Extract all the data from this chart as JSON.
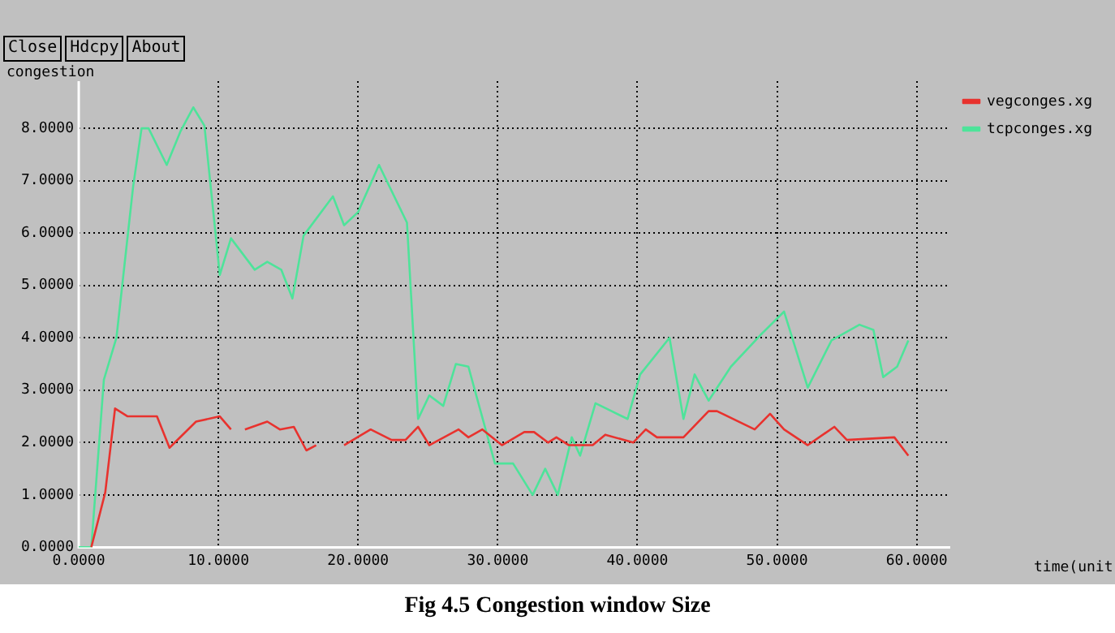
{
  "chart_data": {
    "type": "line",
    "ylabel": "congestion",
    "annotations": [
      "Close",
      "Hdcpy",
      "About",
      "time(unit",
      "Fig 4.5 Congestion window Size"
    ],
    "series": [
      {
        "name": "vegconges.xg",
        "color": "#e8322e",
        "x": [
          0.9,
          1.9,
          2.6,
          3.5,
          5.6,
          6.5,
          8.4,
          10.1,
          10.9,
          11.4,
          11.9,
          13.5,
          14.4,
          15.4,
          16.3,
          17.0,
          18.0,
          19.0,
          20.9,
          22.4,
          23.4,
          24.3,
          25.1,
          27.2,
          27.9,
          28.9,
          30.3,
          31.9,
          32.6,
          33.6,
          34.2,
          35.1,
          36.8,
          37.7,
          39.7,
          40.6,
          41.4,
          43.3,
          45.1,
          45.7,
          48.4,
          49.5,
          50.5,
          52.2,
          54.1,
          55.0,
          58.4,
          59.4
        ],
        "values": [
          0,
          1.05,
          2.65,
          2.5,
          2.5,
          1.9,
          2.4,
          2.5,
          2.25,
          null,
          2.25,
          2.4,
          2.25,
          2.3,
          1.85,
          1.95,
          null,
          1.95,
          2.25,
          2.05,
          2.05,
          2.3,
          1.95,
          2.25,
          2.1,
          2.25,
          1.95,
          2.2,
          2.2,
          2.0,
          2.1,
          1.95,
          1.95,
          2.15,
          2.0,
          2.25,
          2.1,
          2.1,
          2.6,
          2.6,
          2.25,
          2.55,
          2.25,
          1.95,
          2.3,
          2.05,
          2.1,
          1.75
        ]
      },
      {
        "name": "tcpconges.xg",
        "color": "#4ee39a",
        "x": [
          0,
          0.9,
          1.8,
          2.7,
          3.9,
          4.5,
          5.0,
          6.3,
          7.3,
          8.2,
          9.0,
          10.1,
          10.9,
          12.6,
          13.5,
          14.5,
          15.3,
          16.1,
          18.2,
          19.0,
          20.0,
          21.5,
          23.5,
          24.3,
          25.1,
          26.1,
          27.0,
          27.9,
          29.8,
          31.1,
          32.5,
          33.4,
          34.3,
          35.3,
          35.9,
          37.0,
          39.3,
          40.2,
          42.3,
          43.3,
          44.1,
          45.1,
          46.7,
          48.8,
          50.5,
          52.2,
          53.9,
          55.9,
          56.9,
          57.6,
          58.6,
          59.4
        ],
        "values": [
          0,
          0,
          3.2,
          4.0,
          6.9,
          8.0,
          8.0,
          7.3,
          7.95,
          8.4,
          8.05,
          5.2,
          5.9,
          5.3,
          5.45,
          5.3,
          4.75,
          5.95,
          6.7,
          6.15,
          6.4,
          7.3,
          6.2,
          2.45,
          2.9,
          2.7,
          3.5,
          3.45,
          1.6,
          1.6,
          1.0,
          1.5,
          1.0,
          2.1,
          1.75,
          2.75,
          2.45,
          3.3,
          4.0,
          2.45,
          3.3,
          2.8,
          3.45,
          4.05,
          4.5,
          3.05,
          3.95,
          4.25,
          4.15,
          3.25,
          3.45,
          3.95
        ]
      }
    ],
    "xlim": [
      0,
      62.4
    ],
    "ylim": [
      0,
      8.9
    ],
    "xticks": [
      {
        "value": 0,
        "label": "0.0000"
      },
      {
        "value": 10,
        "label": "10.0000"
      },
      {
        "value": 20,
        "label": "20.0000"
      },
      {
        "value": 30,
        "label": "30.0000"
      },
      {
        "value": 40,
        "label": "40.0000"
      },
      {
        "value": 50,
        "label": "50.0000"
      },
      {
        "value": 60,
        "label": "60.0000"
      }
    ],
    "yticks": [
      {
        "value": 0,
        "label": "0.0000"
      },
      {
        "value": 1,
        "label": "1.0000"
      },
      {
        "value": 2,
        "label": "2.0000"
      },
      {
        "value": 3,
        "label": "3.0000"
      },
      {
        "value": 4,
        "label": "4.0000"
      },
      {
        "value": 5,
        "label": "5.0000"
      },
      {
        "value": 6,
        "label": "6.0000"
      },
      {
        "value": 7,
        "label": "7.0000"
      },
      {
        "value": 8,
        "label": "8.0000"
      }
    ],
    "grid": true,
    "legend": "right",
    "marker": "none",
    "line_style": "solid"
  }
}
